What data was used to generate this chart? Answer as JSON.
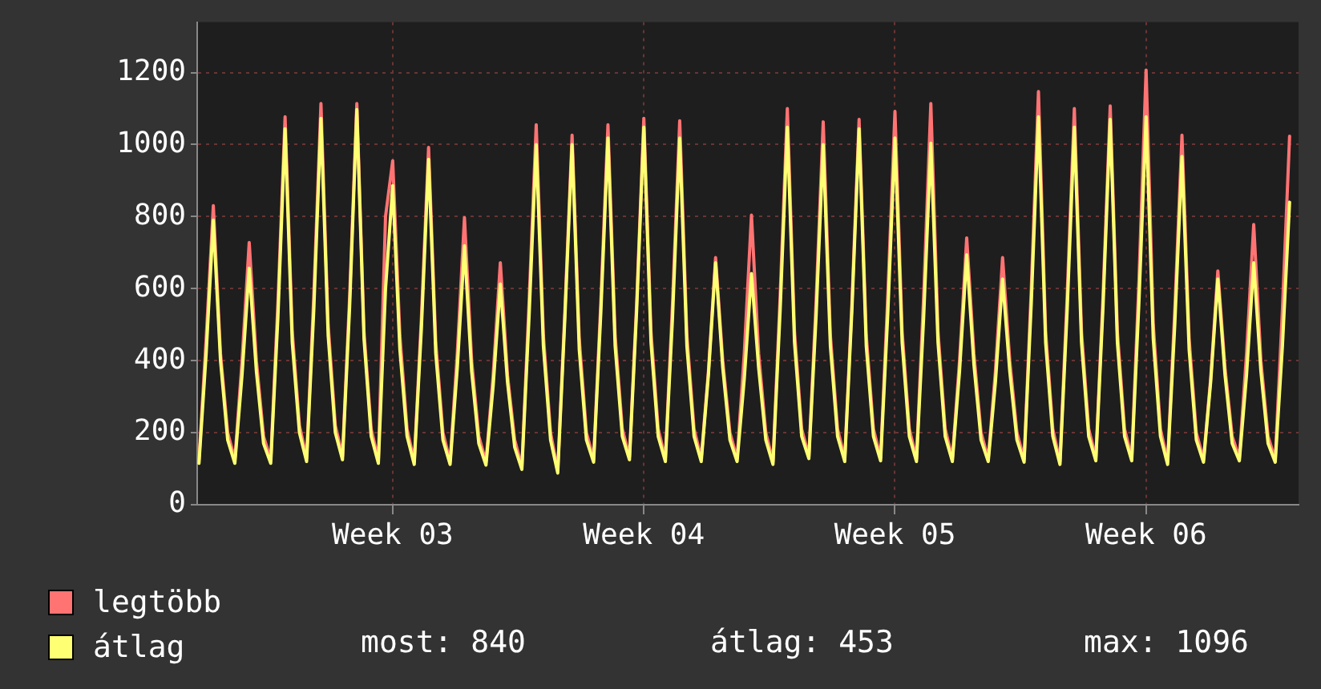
{
  "chart_data": {
    "type": "line",
    "categories": [
      null,
      null,
      null,
      null,
      null,
      null,
      null,
      null,
      null,
      null,
      null,
      null,
      null,
      null,
      null,
      null,
      null,
      null,
      null,
      null,
      null,
      null,
      null,
      null,
      null,
      null,
      null,
      "Week 03",
      null,
      null,
      null,
      null,
      null,
      null,
      null,
      null,
      null,
      null,
      null,
      null,
      null,
      null,
      null,
      null,
      null,
      null,
      null,
      null,
      null,
      null,
      null,
      null,
      null,
      null,
      null,
      null,
      null,
      null,
      null,
      null,
      null,
      null,
      "Week 04",
      null,
      null,
      null,
      null,
      null,
      null,
      null,
      null,
      null,
      null,
      null,
      null,
      null,
      null,
      null,
      null,
      null,
      null,
      null,
      null,
      null,
      null,
      null,
      null,
      null,
      null,
      null,
      null,
      null,
      null,
      null,
      null,
      null,
      null,
      "Week 05",
      null,
      null,
      null,
      null,
      null,
      null,
      null,
      null,
      null,
      null,
      null,
      null,
      null,
      null,
      null,
      null,
      null,
      null,
      null,
      null,
      null,
      null,
      null,
      null,
      null,
      null,
      null,
      null,
      null,
      null,
      null,
      null,
      null,
      null,
      "Week 06",
      null,
      null,
      null,
      null,
      null,
      null,
      null,
      null,
      null,
      null,
      null,
      null,
      null,
      null,
      null,
      null,
      null,
      null,
      null,
      null
    ],
    "series": [
      {
        "name": "legtöbb",
        "color": "#ff7373",
        "values": [
          125,
          460,
          830,
          420,
          200,
          125,
          400,
          728,
          400,
          190,
          125,
          560,
          1077,
          480,
          220,
          130,
          580,
          1114,
          500,
          220,
          135,
          580,
          1114,
          480,
          210,
          125,
          800,
          955,
          470,
          210,
          120,
          520,
          992,
          450,
          200,
          120,
          420,
          797,
          400,
          190,
          118,
          360,
          672,
          360,
          180,
          105,
          560,
          1055,
          470,
          200,
          95,
          540,
          1026,
          460,
          200,
          125,
          560,
          1055,
          470,
          210,
          133,
          560,
          1073,
          480,
          210,
          128,
          560,
          1066,
          470,
          210,
          128,
          370,
          686,
          400,
          200,
          128,
          420,
          804,
          420,
          200,
          120,
          580,
          1100,
          480,
          210,
          135,
          560,
          1063,
          470,
          210,
          128,
          560,
          1070,
          470,
          210,
          130,
          580,
          1092,
          480,
          210,
          128,
          580,
          1114,
          480,
          210,
          128,
          400,
          741,
          420,
          200,
          128,
          370,
          686,
          400,
          200,
          125,
          600,
          1147,
          480,
          210,
          120,
          580,
          1100,
          480,
          210,
          130,
          580,
          1107,
          480,
          210,
          130,
          620,
          1207,
          500,
          210,
          120,
          540,
          1026,
          460,
          200,
          125,
          350,
          649,
          380,
          190,
          130,
          420,
          778,
          400,
          190,
          125,
          540,
          1023
        ]
      },
      {
        "name": "átlag",
        "color": "#ffff73",
        "values": [
          115,
          420,
          790,
          400,
          180,
          115,
          360,
          657,
          370,
          170,
          115,
          520,
          1044,
          450,
          200,
          120,
          540,
          1073,
          470,
          200,
          125,
          550,
          1097,
          460,
          190,
          115,
          600,
          886,
          430,
          190,
          112,
          490,
          959,
          420,
          180,
          112,
          380,
          719,
          370,
          170,
          110,
          330,
          613,
          340,
          160,
          98,
          520,
          1000,
          440,
          180,
          88,
          520,
          1000,
          430,
          180,
          118,
          530,
          1018,
          440,
          190,
          125,
          540,
          1048,
          450,
          190,
          120,
          520,
          1018,
          440,
          190,
          120,
          360,
          672,
          380,
          180,
          120,
          350,
          642,
          380,
          180,
          112,
          540,
          1048,
          450,
          190,
          128,
          520,
          1000,
          440,
          190,
          120,
          540,
          1044,
          440,
          190,
          122,
          530,
          1018,
          450,
          190,
          120,
          520,
          1004,
          450,
          190,
          120,
          370,
          694,
          390,
          180,
          120,
          340,
          627,
          370,
          180,
          118,
          560,
          1077,
          450,
          190,
          112,
          540,
          1048,
          450,
          190,
          122,
          550,
          1070,
          450,
          190,
          122,
          560,
          1077,
          460,
          190,
          112,
          500,
          967,
          430,
          180,
          118,
          340,
          627,
          360,
          170,
          122,
          360,
          672,
          370,
          170,
          118,
          440,
          840
        ]
      }
    ],
    "ylim": [
      0,
      1340
    ],
    "yticks": [
      0,
      200,
      400,
      600,
      800,
      1000,
      1200
    ],
    "grid": true,
    "legend": "bottom left",
    "marker": "none",
    "line_style": "solid",
    "annotations": [
      "most: 840",
      "átlag: 453",
      "max: 1096"
    ]
  }
}
